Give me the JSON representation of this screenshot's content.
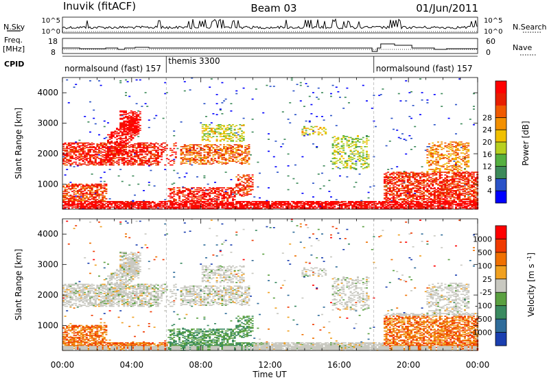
{
  "header": {
    "station": "Inuvik (fitACF)",
    "beam": "Beam 03",
    "date": "01/Jun/2011"
  },
  "summary": {
    "nsky_label": "N.Sky",
    "nsearch_label": "N.Search",
    "freq_label_1": "Freq.",
    "freq_label_2": "[MHz]",
    "nave_label": "Nave",
    "cpid_label": "CPID",
    "nsky_ticks": [
      "10^5",
      "10^0"
    ],
    "nsearch_ticks": [
      "10^5",
      "10^0"
    ],
    "freq_ticks": [
      "18",
      "8"
    ],
    "nave_ticks": [
      "60",
      "0"
    ],
    "cpid_segments": [
      {
        "start": 0,
        "end": 6,
        "label": "normalsound (fast) 157"
      },
      {
        "start": 6,
        "end": 18,
        "label": "themis 3300"
      },
      {
        "start": 18,
        "end": 24,
        "label": "normalsound (fast) 157"
      }
    ]
  },
  "chart_data": [
    {
      "type": "heatmap",
      "panel": "power",
      "xlabel": "Time UT",
      "ylabel": "Slant Range [km]",
      "x_ticks": [
        "00:00",
        "04:00",
        "08:00",
        "12:00",
        "16:00",
        "20:00",
        "00:00"
      ],
      "x_range_hours": [
        0,
        24
      ],
      "ylim": [
        180,
        4500
      ],
      "y_ticks": [
        1000,
        2000,
        3000,
        4000
      ],
      "colorbar": {
        "label": "Power [dB]",
        "ticks": [
          "4",
          "8",
          "12",
          "16",
          "20",
          "24",
          "28"
        ],
        "colors": [
          "#0000ff",
          "#2a52c8",
          "#3d8a5a",
          "#55b040",
          "#b8d020",
          "#f0c000",
          "#f39000",
          "#f05a00",
          "#e81e00",
          "#ff0000"
        ]
      }
    },
    {
      "type": "heatmap",
      "panel": "velocity",
      "xlabel": "Time UT",
      "ylabel": "Slant Range [km]",
      "x_ticks": [
        "00:00",
        "04:00",
        "08:00",
        "12:00",
        "16:00",
        "20:00",
        "00:00"
      ],
      "x_range_hours": [
        0,
        24
      ],
      "ylim": [
        180,
        4500
      ],
      "y_ticks": [
        1000,
        2000,
        3000,
        4000
      ],
      "colorbar": {
        "label": "Velocity [m s^-1]",
        "ticks": [
          "1000",
          "500",
          "100",
          "25",
          "-25",
          "-100",
          "-500",
          "-1000"
        ],
        "colors": [
          "#1a3fb0",
          "#2f6c9a",
          "#3a8a60",
          "#5aa040",
          "#c8c8c0",
          "#f0a020",
          "#f07000",
          "#f03a00",
          "#ff0000"
        ]
      }
    }
  ]
}
